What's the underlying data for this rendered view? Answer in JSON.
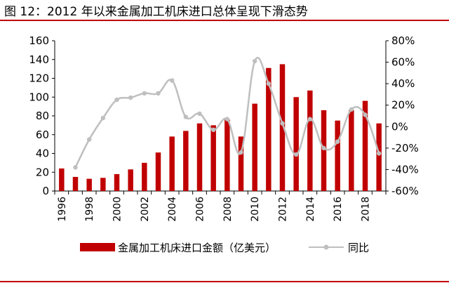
{
  "header": {
    "title": "图 12：2012 年以来金属加工机床进口总体呈现下滑态势"
  },
  "chart_data": {
    "type": "bar",
    "title": "图 12：2012 年以来金属加工机床进口总体呈现下滑态势",
    "categories": [
      "1996",
      "1997",
      "1998",
      "1999",
      "2000",
      "2001",
      "2002",
      "2003",
      "2004",
      "2005",
      "2006",
      "2007",
      "2008",
      "2009",
      "2010",
      "2011",
      "2012",
      "2013",
      "2014",
      "2015",
      "2016",
      "2017",
      "2018",
      "2019"
    ],
    "x_tick_labels": [
      "1996",
      "1998",
      "2000",
      "2002",
      "2004",
      "2006",
      "2008",
      "2010",
      "2012",
      "2014",
      "2016",
      "2018"
    ],
    "series": [
      {
        "name": "金属加工机床进口金额（亿美元）",
        "type": "bar",
        "axis": "left",
        "color": "#c00000",
        "values": [
          24,
          15,
          13,
          14,
          18,
          23,
          30,
          41,
          58,
          64,
          72,
          70,
          76,
          58,
          93,
          131,
          135,
          100,
          107,
          86,
          75,
          86,
          96,
          72
        ]
      },
      {
        "name": "同比",
        "type": "line",
        "axis": "right",
        "color": "#bfbfbf",
        "values": [
          null,
          -38,
          -12,
          8,
          25,
          27,
          31,
          31,
          43,
          9,
          12,
          -3,
          7,
          -24,
          61,
          40,
          3,
          -26,
          7,
          -20,
          -14,
          16,
          11,
          -25
        ]
      }
    ],
    "y_left": {
      "min": 0,
      "max": 160,
      "ticks": [
        "0",
        "20",
        "40",
        "60",
        "80",
        "100",
        "120",
        "140",
        "160"
      ]
    },
    "y_right": {
      "min": -60,
      "max": 80,
      "ticks": [
        "-60%",
        "-40%",
        "-20%",
        "0%",
        "20%",
        "40%",
        "60%",
        "80%"
      ]
    },
    "legend_position": "bottom",
    "grid": false
  }
}
